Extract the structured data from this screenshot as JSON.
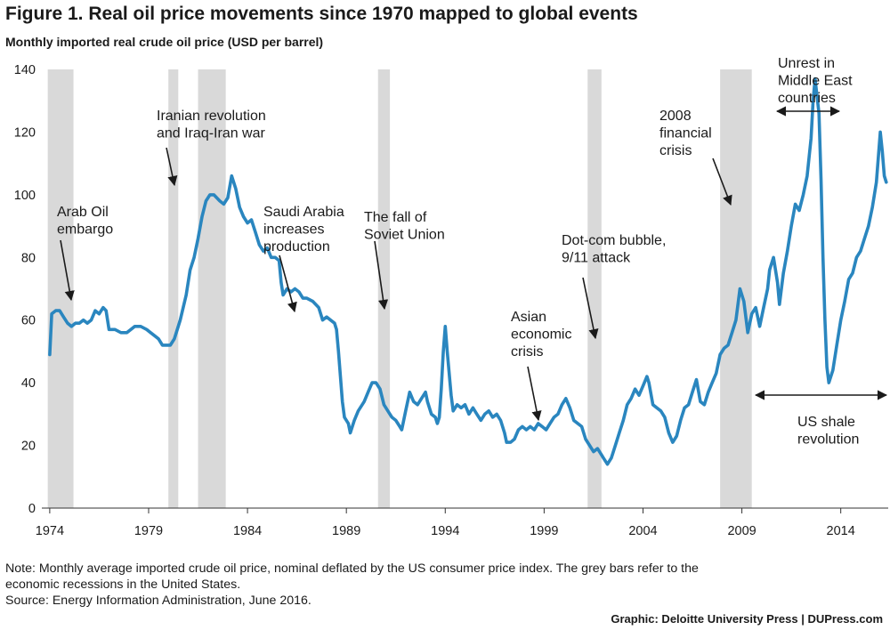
{
  "title": "Figure 1. Real oil price movements since 1970 mapped to global events",
  "subtitle": "Monthly imported real crude oil price (USD per barrel)",
  "note_line1": "Note: Monthly average imported crude oil price, nominal deflated by the US consumer price index. The grey bars refer to the",
  "note_line2": "economic recessions in the United States.",
  "source": "Source: Energy Information Administration, June 2016.",
  "credit": "Graphic: Deloitte University Press  |  DUPress.com",
  "colors": {
    "line": "#2a86bf",
    "recession": "#d9d9d9",
    "arrow": "#1a1a1a"
  },
  "chart_data": {
    "type": "line",
    "x_unit": "year",
    "ylim": [
      0,
      140
    ],
    "xlim": [
      1973.6,
      2016.4
    ],
    "yticks": [
      0,
      20,
      40,
      60,
      80,
      100,
      120,
      140
    ],
    "xticks": [
      1974,
      1979,
      1984,
      1989,
      1994,
      1999,
      2004,
      2009,
      2014
    ],
    "grid": false,
    "recessions": [
      [
        1973.9,
        1975.2
      ],
      [
        1980.0,
        1980.5
      ],
      [
        1981.5,
        1982.9
      ],
      [
        1990.6,
        1991.2
      ],
      [
        2001.2,
        2001.9
      ],
      [
        2007.9,
        2009.5
      ]
    ],
    "series": [
      {
        "points": [
          [
            1974.0,
            49
          ],
          [
            1974.1,
            62
          ],
          [
            1974.3,
            63
          ],
          [
            1974.5,
            63
          ],
          [
            1974.7,
            61
          ],
          [
            1974.9,
            59
          ],
          [
            1975.1,
            58
          ],
          [
            1975.3,
            59
          ],
          [
            1975.5,
            59
          ],
          [
            1975.7,
            60
          ],
          [
            1975.9,
            59
          ],
          [
            1976.1,
            60
          ],
          [
            1976.3,
            63
          ],
          [
            1976.5,
            62
          ],
          [
            1976.7,
            64
          ],
          [
            1976.85,
            63
          ],
          [
            1977.0,
            57
          ],
          [
            1977.3,
            57
          ],
          [
            1977.6,
            56
          ],
          [
            1977.9,
            56
          ],
          [
            1978.1,
            57
          ],
          [
            1978.3,
            58
          ],
          [
            1978.6,
            58
          ],
          [
            1978.9,
            57
          ],
          [
            1979.1,
            56
          ],
          [
            1979.3,
            55
          ],
          [
            1979.5,
            54
          ],
          [
            1979.7,
            52
          ],
          [
            1979.9,
            52
          ],
          [
            1980.1,
            52
          ],
          [
            1980.3,
            54
          ],
          [
            1980.6,
            60
          ],
          [
            1980.9,
            68
          ],
          [
            1981.1,
            76
          ],
          [
            1981.3,
            80
          ],
          [
            1981.5,
            86
          ],
          [
            1981.7,
            93
          ],
          [
            1981.9,
            98
          ],
          [
            1982.1,
            100
          ],
          [
            1982.3,
            100
          ],
          [
            1982.6,
            98
          ],
          [
            1982.8,
            97
          ],
          [
            1983.0,
            99
          ],
          [
            1983.2,
            106
          ],
          [
            1983.4,
            102
          ],
          [
            1983.6,
            96
          ],
          [
            1983.8,
            93
          ],
          [
            1984.0,
            91
          ],
          [
            1984.2,
            92
          ],
          [
            1984.4,
            88
          ],
          [
            1984.6,
            84
          ],
          [
            1984.8,
            82
          ],
          [
            1985.0,
            83
          ],
          [
            1985.2,
            80
          ],
          [
            1985.4,
            80
          ],
          [
            1985.6,
            79
          ],
          [
            1985.7,
            72
          ],
          [
            1985.8,
            68
          ],
          [
            1986.0,
            70
          ],
          [
            1986.2,
            69
          ],
          [
            1986.4,
            70
          ],
          [
            1986.6,
            69
          ],
          [
            1986.8,
            67
          ],
          [
            1987.0,
            67
          ],
          [
            1987.3,
            66
          ],
          [
            1987.6,
            64
          ],
          [
            1987.8,
            60
          ],
          [
            1988.0,
            61
          ],
          [
            1988.2,
            60
          ],
          [
            1988.4,
            59
          ],
          [
            1988.5,
            57
          ],
          [
            1988.6,
            50
          ],
          [
            1988.8,
            34
          ],
          [
            1988.9,
            29
          ],
          [
            1989.1,
            27
          ],
          [
            1989.2,
            24
          ],
          [
            1989.4,
            28
          ],
          [
            1989.6,
            31
          ],
          [
            1989.9,
            34
          ],
          [
            1990.1,
            37
          ],
          [
            1990.3,
            40
          ],
          [
            1990.5,
            40
          ],
          [
            1990.7,
            38
          ],
          [
            1990.9,
            33
          ],
          [
            1991.1,
            31
          ],
          [
            1991.3,
            29
          ],
          [
            1991.5,
            28
          ],
          [
            1991.7,
            26
          ],
          [
            1991.8,
            25
          ],
          [
            1992.0,
            31
          ],
          [
            1992.2,
            37
          ],
          [
            1992.4,
            34
          ],
          [
            1992.6,
            33
          ],
          [
            1992.8,
            35
          ],
          [
            1993.0,
            37
          ],
          [
            1993.1,
            34
          ],
          [
            1993.3,
            30
          ],
          [
            1993.5,
            29
          ],
          [
            1993.6,
            27
          ],
          [
            1993.7,
            29
          ],
          [
            1993.8,
            38
          ],
          [
            1993.9,
            50
          ],
          [
            1994.0,
            58
          ],
          [
            1994.1,
            50
          ],
          [
            1994.3,
            36
          ],
          [
            1994.4,
            31
          ],
          [
            1994.6,
            33
          ],
          [
            1994.8,
            32
          ],
          [
            1995.0,
            33
          ],
          [
            1995.2,
            30
          ],
          [
            1995.4,
            32
          ],
          [
            1995.6,
            30
          ],
          [
            1995.8,
            28
          ],
          [
            1996.0,
            30
          ],
          [
            1996.2,
            31
          ],
          [
            1996.4,
            29
          ],
          [
            1996.6,
            30
          ],
          [
            1996.8,
            28
          ],
          [
            1997.0,
            24
          ],
          [
            1997.1,
            21
          ],
          [
            1997.3,
            21
          ],
          [
            1997.5,
            22
          ],
          [
            1997.7,
            25
          ],
          [
            1997.9,
            26
          ],
          [
            1998.1,
            25
          ],
          [
            1998.3,
            26
          ],
          [
            1998.5,
            25
          ],
          [
            1998.7,
            27
          ],
          [
            1998.9,
            26
          ],
          [
            1999.1,
            25
          ],
          [
            1999.3,
            27
          ],
          [
            1999.5,
            29
          ],
          [
            1999.7,
            30
          ],
          [
            1999.9,
            33
          ],
          [
            2000.1,
            35
          ],
          [
            2000.3,
            32
          ],
          [
            2000.5,
            28
          ],
          [
            2000.7,
            27
          ],
          [
            2000.9,
            26
          ],
          [
            2001.1,
            22
          ],
          [
            2001.3,
            20
          ],
          [
            2001.5,
            18
          ],
          [
            2001.7,
            19
          ],
          [
            2001.9,
            17
          ],
          [
            2002.0,
            16
          ],
          [
            2002.2,
            14
          ],
          [
            2002.4,
            16
          ],
          [
            2002.6,
            20
          ],
          [
            2002.8,
            24
          ],
          [
            2003.0,
            28
          ],
          [
            2003.2,
            33
          ],
          [
            2003.4,
            35
          ],
          [
            2003.6,
            38
          ],
          [
            2003.8,
            36
          ],
          [
            2004.0,
            39
          ],
          [
            2004.2,
            42
          ],
          [
            2004.3,
            40
          ],
          [
            2004.5,
            33
          ],
          [
            2004.7,
            32
          ],
          [
            2004.9,
            31
          ],
          [
            2005.1,
            29
          ],
          [
            2005.3,
            24
          ],
          [
            2005.5,
            21
          ],
          [
            2005.7,
            23
          ],
          [
            2005.9,
            28
          ],
          [
            2006.1,
            32
          ],
          [
            2006.3,
            33
          ],
          [
            2006.5,
            37
          ],
          [
            2006.7,
            41
          ],
          [
            2006.9,
            34
          ],
          [
            2007.1,
            33
          ],
          [
            2007.3,
            37
          ],
          [
            2007.5,
            40
          ],
          [
            2007.7,
            43
          ],
          [
            2007.9,
            49
          ],
          [
            2008.1,
            51
          ],
          [
            2008.3,
            52
          ],
          [
            2008.5,
            56
          ],
          [
            2008.7,
            60
          ],
          [
            2008.9,
            70
          ],
          [
            2009.1,
            66
          ],
          [
            2009.3,
            56
          ],
          [
            2009.5,
            62
          ],
          [
            2009.7,
            64
          ],
          [
            2009.9,
            58
          ],
          [
            2010.1,
            64
          ],
          [
            2010.3,
            70
          ],
          [
            2010.4,
            76
          ],
          [
            2010.6,
            80
          ],
          [
            2010.8,
            72
          ],
          [
            2010.9,
            65
          ],
          [
            2011.1,
            75
          ],
          [
            2011.3,
            82
          ],
          [
            2011.5,
            90
          ],
          [
            2011.7,
            97
          ],
          [
            2011.9,
            95
          ],
          [
            2012.1,
            100
          ],
          [
            2012.3,
            106
          ],
          [
            2012.5,
            118
          ],
          [
            2012.6,
            130
          ],
          [
            2012.7,
            137
          ],
          [
            2012.9,
            126
          ],
          [
            2013.0,
            105
          ],
          [
            2013.1,
            80
          ],
          [
            2013.2,
            60
          ],
          [
            2013.3,
            45
          ],
          [
            2013.4,
            40
          ],
          [
            2013.6,
            44
          ],
          [
            2013.8,
            52
          ],
          [
            2014.0,
            60
          ],
          [
            2014.2,
            66
          ],
          [
            2014.4,
            73
          ],
          [
            2014.6,
            75
          ],
          [
            2014.8,
            80
          ],
          [
            2015.0,
            82
          ],
          [
            2015.2,
            86
          ],
          [
            2015.4,
            90
          ],
          [
            2015.6,
            96
          ],
          [
            2015.8,
            104
          ],
          [
            2015.9,
            112
          ],
          [
            2016.0,
            120
          ],
          [
            2016.1,
            114
          ],
          [
            2016.2,
            106
          ],
          [
            2016.3,
            104
          ]
        ]
      }
    ]
  },
  "annotations": [
    {
      "id": "arab-oil",
      "lines": [
        "Arab Oil",
        "embargo"
      ]
    },
    {
      "id": "iranian",
      "lines": [
        "Iranian revolution",
        "and Iraq-Iran war"
      ]
    },
    {
      "id": "saudi",
      "lines": [
        "Saudi Arabia",
        "increases",
        "production"
      ]
    },
    {
      "id": "soviet",
      "lines": [
        "The fall of",
        "Soviet Union"
      ]
    },
    {
      "id": "dotcom",
      "lines": [
        "Dot-com bubble,",
        "9/11 attack"
      ]
    },
    {
      "id": "asian",
      "lines": [
        "Asian",
        "economic",
        "crisis"
      ]
    },
    {
      "id": "financial",
      "lines": [
        "2008",
        "financial",
        "crisis"
      ]
    },
    {
      "id": "unrest",
      "lines": [
        "Unrest in",
        "Middle East",
        "countries"
      ]
    },
    {
      "id": "shale",
      "lines": [
        "US shale",
        "revolution"
      ]
    }
  ]
}
